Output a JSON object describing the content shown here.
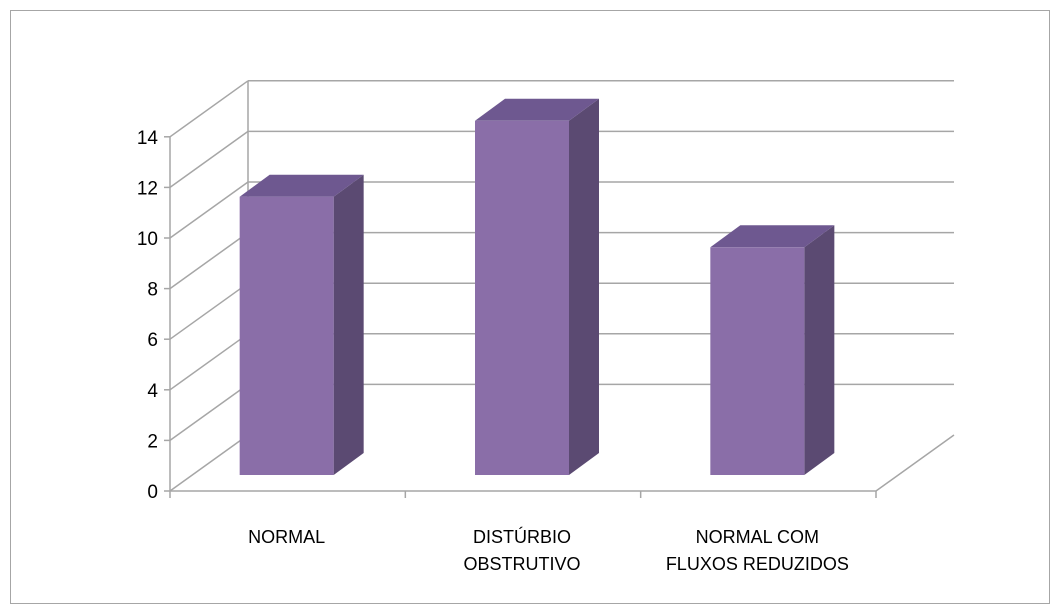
{
  "chart_data": {
    "type": "bar",
    "title": "",
    "xlabel": "",
    "ylabel": "",
    "categories": [
      [
        "NORMAL"
      ],
      [
        "DISTÚRBIO",
        "OBSTRUTIVO"
      ],
      [
        "NORMAL COM",
        "FLUXOS REDUZIDOS"
      ]
    ],
    "values": [
      11,
      14,
      9
    ],
    "ylim": [
      0,
      14
    ],
    "yticks": [
      "0",
      "2",
      "4",
      "6",
      "8",
      "10",
      "12",
      "14"
    ],
    "grid": true,
    "legend": "none",
    "style": "3d-column",
    "colors": {
      "bar_front": "#8a6ea8",
      "bar_side": "#5b4a72",
      "bar_top": "#6e5890",
      "grid": "#a6a6a6"
    }
  }
}
